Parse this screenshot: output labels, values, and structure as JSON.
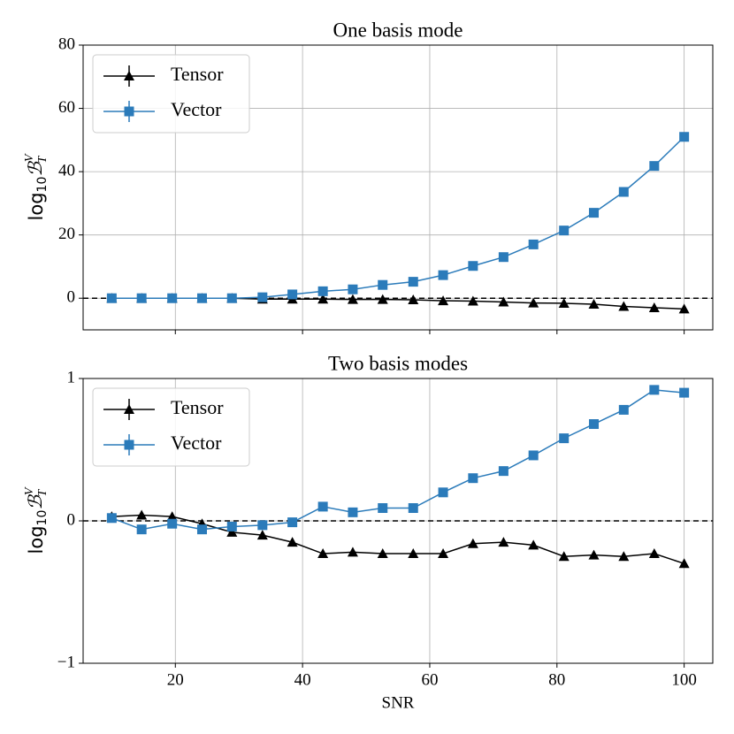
{
  "chart_data": [
    {
      "type": "line",
      "title": "One basis mode",
      "ylabel": [
        "log",
        "10",
        "ℬ",
        "V",
        "T"
      ],
      "x": [
        10,
        14.7,
        19.5,
        24.2,
        28.9,
        33.7,
        38.4,
        43.2,
        47.9,
        52.6,
        57.4,
        62.1,
        66.8,
        71.6,
        76.3,
        81.1,
        85.8,
        90.5,
        95.3,
        100
      ],
      "series": [
        {
          "name": "Tensor",
          "color": "#000000",
          "marker": "triangle",
          "values": [
            0,
            0,
            0,
            0,
            0,
            -0.3,
            -0.3,
            -0.3,
            -0.4,
            -0.4,
            -0.5,
            -0.8,
            -0.9,
            -1.2,
            -1.5,
            -1.6,
            -1.9,
            -2.6,
            -3,
            -3.4
          ]
        },
        {
          "name": "Vector",
          "color": "#2b7bba",
          "marker": "square",
          "values": [
            0,
            0,
            0,
            0,
            0,
            0.3,
            1.2,
            2.2,
            2.8,
            4.2,
            5.2,
            7.3,
            10.2,
            13,
            17,
            21.4,
            27,
            33.6,
            41.8,
            51
          ]
        }
      ],
      "xlim": [
        5.5,
        104.5
      ],
      "ylim": [
        -10,
        80
      ],
      "xticks": [
        20,
        40,
        60,
        80,
        100
      ],
      "yticks": [
        0,
        20,
        40,
        60,
        80
      ],
      "show_xticklabels": false,
      "hline": 0,
      "grid": true,
      "legend": "upper left"
    },
    {
      "type": "line",
      "title": "Two basis modes",
      "xlabel": "SNR",
      "ylabel": [
        "log",
        "10",
        "ℬ",
        "V",
        "T"
      ],
      "x": [
        10,
        14.7,
        19.5,
        24.2,
        28.9,
        33.7,
        38.4,
        43.2,
        47.9,
        52.6,
        57.4,
        62.1,
        66.8,
        71.6,
        76.3,
        81.1,
        85.8,
        90.5,
        95.3,
        100
      ],
      "series": [
        {
          "name": "Tensor",
          "color": "#000000",
          "marker": "triangle",
          "values": [
            0.03,
            0.04,
            0.03,
            -0.02,
            -0.08,
            -0.1,
            -0.15,
            -0.23,
            -0.22,
            -0.23,
            -0.23,
            -0.23,
            -0.16,
            -0.15,
            -0.17,
            -0.25,
            -0.24,
            -0.25,
            -0.23,
            -0.3
          ]
        },
        {
          "name": "Vector",
          "color": "#2b7bba",
          "marker": "square",
          "values": [
            0.02,
            -0.06,
            -0.02,
            -0.06,
            -0.04,
            -0.03,
            -0.01,
            0.1,
            0.06,
            0.09,
            0.09,
            0.2,
            0.3,
            0.35,
            0.46,
            0.58,
            0.68,
            0.78,
            0.92,
            0.9
          ]
        }
      ],
      "xlim": [
        5.5,
        104.5
      ],
      "ylim": [
        -1,
        1
      ],
      "xticks": [
        20,
        40,
        60,
        80,
        100
      ],
      "yticks": [
        {
          "value": -1,
          "label": "−1"
        },
        0,
        1
      ],
      "show_xticklabels": true,
      "hline": 0,
      "grid": true,
      "legend": "upper left"
    }
  ]
}
